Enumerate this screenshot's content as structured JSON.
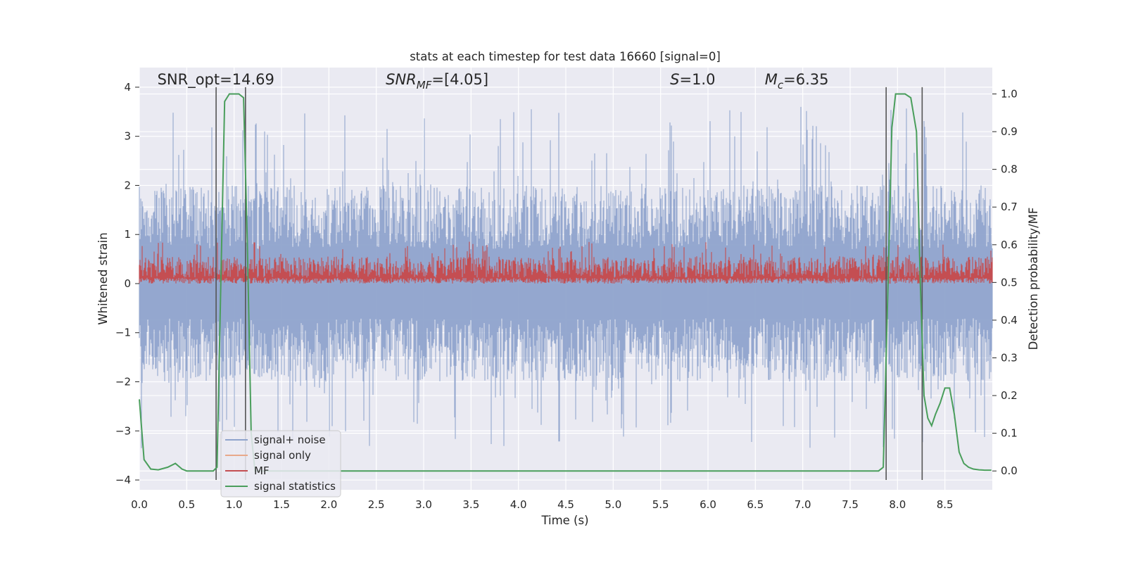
{
  "chart_data": {
    "type": "line",
    "title": "stats at each timestep for test data 16660 [signal=0]",
    "xlabel": "Time (s)",
    "ylabel_left": "Whitened strain",
    "ylabel_right": "Detection probability/MF",
    "xlim": [
      0.0,
      9.0
    ],
    "ylim_left": [
      -4.2,
      4.4
    ],
    "ylim_right": [
      -0.05,
      1.07
    ],
    "xticks": [
      0.0,
      0.5,
      1.0,
      1.5,
      2.0,
      2.5,
      3.0,
      3.5,
      4.0,
      4.5,
      5.0,
      5.5,
      6.0,
      6.5,
      7.0,
      7.5,
      8.0,
      8.5
    ],
    "xtick_labels": [
      "0.0",
      "0.5",
      "1.0",
      "1.5",
      "2.0",
      "2.5",
      "3.0",
      "3.5",
      "4.0",
      "4.5",
      "5.0",
      "5.5",
      "6.0",
      "6.5",
      "7.0",
      "7.5",
      "8.0",
      "8.5"
    ],
    "yticks_left": [
      -4,
      -3,
      -2,
      -1,
      0,
      1,
      2,
      3,
      4
    ],
    "ytick_labels_left": [
      "−4",
      "−3",
      "−2",
      "−1",
      "0",
      "1",
      "2",
      "3",
      "4"
    ],
    "yticks_right": [
      0.0,
      0.1,
      0.2,
      0.3,
      0.4,
      0.5,
      0.6,
      0.7,
      0.8,
      0.9,
      1.0
    ],
    "ytick_labels_right": [
      "0.0",
      "0.1",
      "0.2",
      "0.3",
      "0.4",
      "0.5",
      "0.6",
      "0.7",
      "0.8",
      "0.9",
      "1.0"
    ],
    "annotations": [
      {
        "key": "snr-opt",
        "text": "SNR_opt=14.69",
        "x": 0.19,
        "y": 4.1
      },
      {
        "key": "snr-mf",
        "text": "SNR_MF=[4.05]",
        "x": 2.6,
        "y": 4.1
      },
      {
        "key": "s",
        "text": "S=1.0",
        "x": 5.6,
        "y": 4.1
      },
      {
        "key": "mc",
        "text": "M_c=6.35",
        "x": 6.6,
        "y": 4.1
      }
    ],
    "vertical_lines": [
      0.81,
      1.12,
      7.88,
      8.26
    ],
    "vertical_line_range": [
      -4.0,
      4.0
    ],
    "series": [
      {
        "name": "signal+ noise",
        "color": "#8fa3cc",
        "axis": "left",
        "style": "dense-noise",
        "typical_max": 2.0,
        "peak_max": 4.0,
        "typical_min": -2.0,
        "peak_min": -3.7
      },
      {
        "name": "signal only",
        "color": "#e8a98a",
        "axis": "left",
        "values": []
      },
      {
        "name": "MF",
        "color": "#c44e52",
        "axis": "left",
        "style": "dense-noise",
        "floor": 0.0,
        "typical_max": 0.55,
        "peak_max": 1.0
      },
      {
        "name": "signal statistics",
        "color": "#4a9e5c",
        "axis": "right",
        "x": [
          0.0,
          0.05,
          0.12,
          0.2,
          0.3,
          0.38,
          0.45,
          0.5,
          0.6,
          0.7,
          0.78,
          0.82,
          0.86,
          0.9,
          0.95,
          1.0,
          1.05,
          1.1,
          1.14,
          1.18,
          1.22,
          1.3,
          2.0,
          3.0,
          4.0,
          5.0,
          6.0,
          7.0,
          7.8,
          7.85,
          7.9,
          7.94,
          7.98,
          8.02,
          8.08,
          8.14,
          8.2,
          8.24,
          8.28,
          8.32,
          8.36,
          8.4,
          8.45,
          8.5,
          8.55,
          8.6,
          8.65,
          8.7,
          8.75,
          8.8,
          8.86,
          8.92,
          8.99
        ],
        "values": [
          0.19,
          0.03,
          0.005,
          0.003,
          0.01,
          0.02,
          0.005,
          0.0,
          0.0,
          0.0,
          0.0,
          0.01,
          0.5,
          0.98,
          1.0,
          1.0,
          1.0,
          0.99,
          0.6,
          0.1,
          0.0,
          0.0,
          0.0,
          0.0,
          0.0,
          0.0,
          0.0,
          0.0,
          0.0,
          0.01,
          0.5,
          0.91,
          1.0,
          1.0,
          1.0,
          0.99,
          0.9,
          0.5,
          0.2,
          0.14,
          0.12,
          0.15,
          0.18,
          0.22,
          0.22,
          0.15,
          0.05,
          0.02,
          0.01,
          0.005,
          0.003,
          0.002,
          0.002
        ]
      }
    ],
    "legend": {
      "placement": "lower-left",
      "entries": [
        {
          "label": "signal+ noise",
          "color": "#8fa3cc"
        },
        {
          "label": "signal only",
          "color": "#e8a98a"
        },
        {
          "label": "MF",
          "color": "#c44e52"
        },
        {
          "label": "signal statistics",
          "color": "#4a9e5c"
        }
      ]
    },
    "grid": true,
    "colors": {
      "axes_bg": "#eaeaf2",
      "grid": "#ffffff",
      "vline": "#555555",
      "text": "#262626"
    }
  }
}
